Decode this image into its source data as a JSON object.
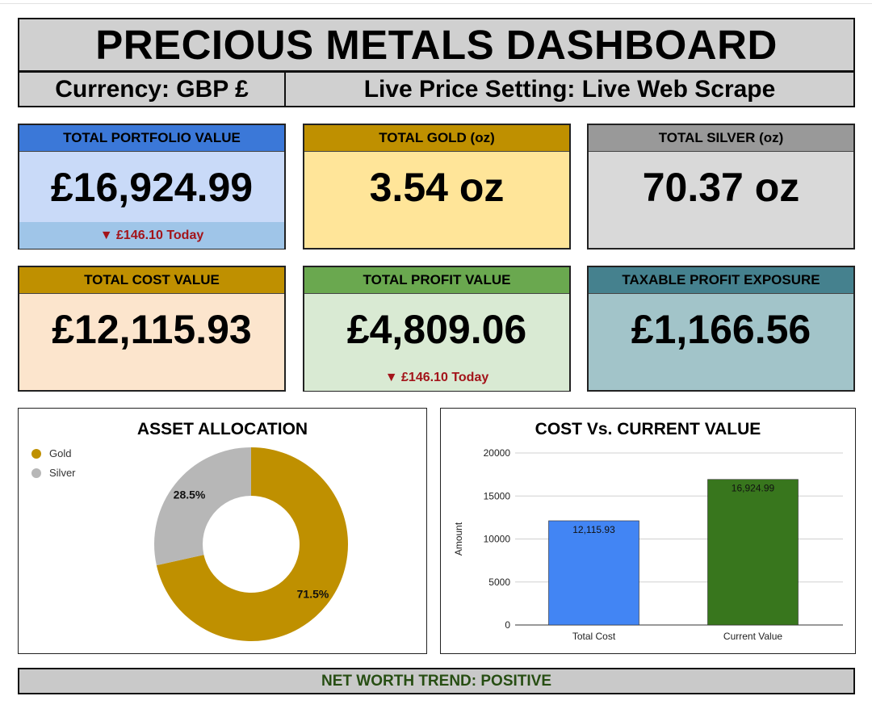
{
  "header": {
    "title": "PRECIOUS METALS DASHBOARD",
    "currency": "Currency: GBP £",
    "price_setting": "Live Price Setting: Live Web Scrape"
  },
  "cards": [
    {
      "header": "TOTAL PORTFOLIO VALUE",
      "value": "£16,924.99",
      "footer": "▼ £146.10 Today",
      "header_color": "#3b78d8",
      "body_color": "#c9daf8",
      "footer_color": "#9fc5e8"
    },
    {
      "header": "TOTAL GOLD (oz)",
      "value": "3.54 oz",
      "footer": "",
      "header_color": "#bf9000",
      "body_color": "#ffe599"
    },
    {
      "header": "TOTAL SILVER (oz)",
      "value": "70.37 oz",
      "footer": "",
      "header_color": "#999999",
      "body_color": "#d9d9d9"
    },
    {
      "header": "TOTAL COST VALUE",
      "value": "£12,115.93",
      "footer": "",
      "header_color": "#bf9000",
      "body_color": "#fce5cd"
    },
    {
      "header": "TOTAL PROFIT VALUE",
      "value": "£4,809.06",
      "footer": "▼ £146.10 Today",
      "header_color": "#6aa84f",
      "body_color": "#d9ead3"
    },
    {
      "header": "TAXABLE PROFIT EXPOSURE",
      "value": "£1,166.56",
      "footer": "",
      "header_color": "#45818e",
      "body_color": "#a2c4c9"
    }
  ],
  "chart_data": [
    {
      "type": "pie",
      "title": "ASSET ALLOCATION",
      "donut": true,
      "legend_position": "top-left",
      "categories": [
        "Gold",
        "Silver"
      ],
      "values": [
        71.5,
        28.5
      ],
      "labels": [
        "71.5%",
        "28.5%"
      ],
      "colors": [
        "#bf9000",
        "#b7b7b7"
      ]
    },
    {
      "type": "bar",
      "title": "COST Vs. CURRENT VALUE",
      "xlabel": "",
      "ylabel": "Amount",
      "categories": [
        "Total Cost",
        "Current Value"
      ],
      "values": [
        12115.93,
        16924.99
      ],
      "data_labels": [
        "12,115.93",
        "16,924.99"
      ],
      "colors": [
        "#4285f4",
        "#38761d"
      ],
      "ylim": [
        0,
        20000
      ],
      "yticks": [
        "0",
        "5000",
        "10000",
        "15000",
        "20000"
      ],
      "grid": true
    }
  ],
  "footer": {
    "text": "NET WORTH TREND: POSITIVE",
    "text_color": "#274e13",
    "bg_color": "#c9c9c9"
  },
  "colors": {
    "loss_red": "#a3141a"
  }
}
